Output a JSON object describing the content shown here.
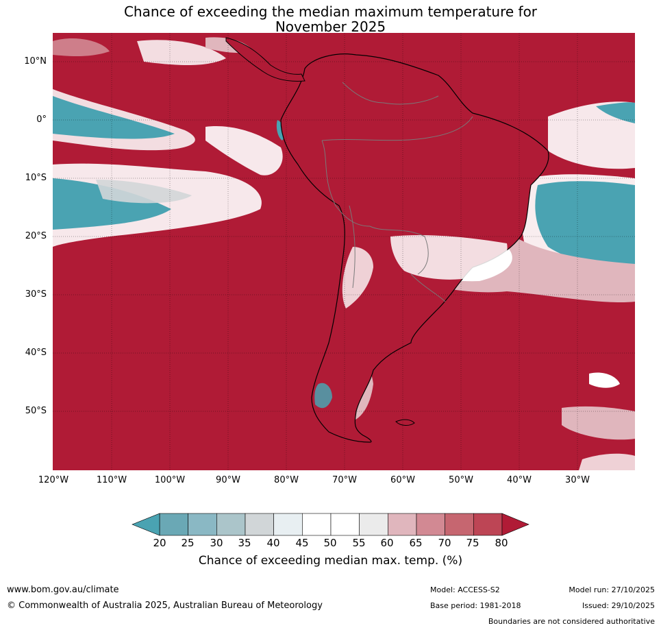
{
  "title": {
    "line1": "Chance of exceeding the median maximum temperature for",
    "line2": "November 2025"
  },
  "map": {
    "lat_labels": [
      "10°N",
      "0°",
      "10°S",
      "20°S",
      "30°S",
      "40°S",
      "50°S"
    ],
    "lon_labels": [
      "120°W",
      "110°W",
      "100°W",
      "90°W",
      "80°W",
      "70°W",
      "60°W",
      "50°W",
      "40°W",
      "30°W"
    ],
    "ocean_color": "#b01b36",
    "coast_color": "#000000",
    "border_color": "#7a7a7a"
  },
  "legend": {
    "ticks": [
      "20",
      "25",
      "30",
      "35",
      "40",
      "45",
      "50",
      "55",
      "60",
      "65",
      "70",
      "75",
      "80"
    ],
    "colors": [
      "#6aa8b5",
      "#8ab8c4",
      "#abc5ca",
      "#d1d6d8",
      "#e8eff2",
      "#ffffff",
      "#ffffff",
      "#ebebeb",
      "#e0b6bd",
      "#d28993",
      "#c66670",
      "#bd4555"
    ],
    "under_color": "#4aa3b2",
    "over_color": "#b01b36",
    "caption": "Chance of exceeding median max. temp. (%)"
  },
  "footer": {
    "website": "www.bom.gov.au/climate",
    "copyright": "© Commonwealth of Australia 2025, Australian Bureau of Meteorology",
    "model": "Model: ACCESS-S2",
    "base_period": "Base period: 1981-2018",
    "model_run": "Model run: 27/10/2025",
    "issued": "Issued: 29/10/2025",
    "disclaimer": "Boundaries are not considered authoritative"
  }
}
